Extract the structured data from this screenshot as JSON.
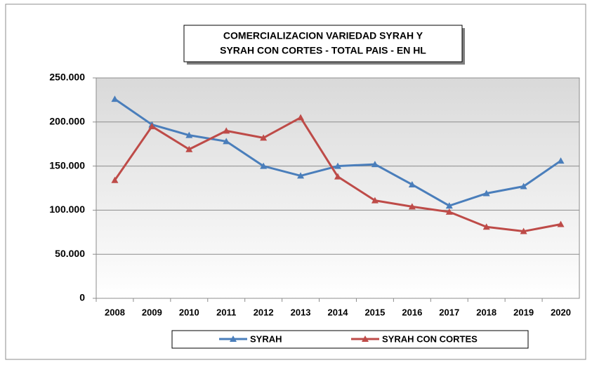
{
  "chart_data": {
    "type": "line",
    "title": [
      "COMERCIALIZACION VARIEDAD SYRAH  Y",
      "SYRAH CON CORTES - TOTAL PAIS - EN HL"
    ],
    "categories": [
      "2008",
      "2009",
      "2010",
      "2011",
      "2012",
      "2013",
      "2014",
      "2015",
      "2016",
      "2017",
      "2018",
      "2019",
      "2020"
    ],
    "series": [
      {
        "name": "SYRAH",
        "color": "#4a7ebb",
        "values": [
          226000,
          197000,
          185000,
          178000,
          150000,
          139000,
          150000,
          152000,
          129000,
          105000,
          119000,
          127000,
          156000
        ]
      },
      {
        "name": "SYRAH CON CORTES",
        "color": "#be4b48",
        "values": [
          134000,
          195000,
          169000,
          190000,
          182000,
          205000,
          138000,
          111000,
          104000,
          98000,
          81000,
          76000,
          84000
        ]
      }
    ],
    "ylim": [
      0,
      250000
    ],
    "yticks": [
      0,
      {
        "value": 50000,
        "label": "50.000"
      },
      {
        "value": 100000,
        "label": "100.000"
      },
      {
        "value": 150000,
        "label": "150.000"
      },
      {
        "value": 200000,
        "label": "200.000"
      },
      {
        "value": 250000,
        "label": "250.000"
      }
    ],
    "grid": true,
    "legend": "bottom"
  }
}
